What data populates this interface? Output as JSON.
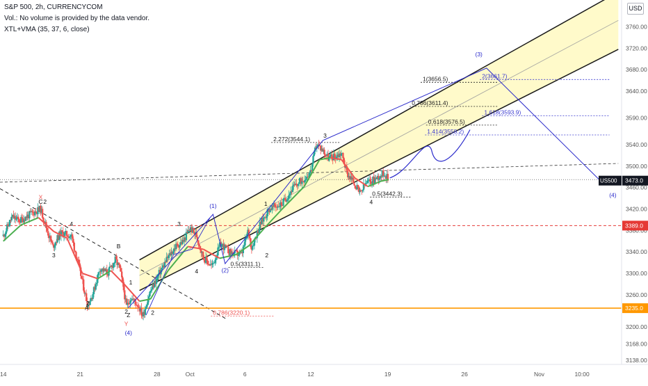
{
  "header": {
    "line1": "S&P 500, 2h, CURRENCYCOM",
    "line2": "Vol.: No volume is provided by the data vendor.",
    "line3": "XTL+VMA (35, 37, 6, close)",
    "currency_button": "USD"
  },
  "colors": {
    "bull": "#26a69a",
    "bear": "#ef5350",
    "vma_bull": "#4caf50",
    "vma_bear": "#ef5350",
    "channel_fill": "#fff9c4",
    "channel_line": "#1a1a1a",
    "wave_blue": "#2a2acb",
    "orange_line": "#ff9800",
    "red_line": "#e53935",
    "last_price_bg": "#131722"
  },
  "chart_data": {
    "type": "candlestick",
    "instrument": "S&P 500, 2h, CURRENCYCOM",
    "ylim": [
      3130,
      3810
    ],
    "y_ticks": [
      3138,
      3168,
      3200,
      3235,
      3260,
      3300,
      3340,
      3380,
      3420,
      3460,
      3500,
      3540,
      3590,
      3640,
      3680,
      3720,
      3760,
      3800
    ],
    "y_tick_labels": [
      "3138.00",
      "3168.00",
      "3200.00",
      "3235.0",
      "3260.00",
      "3300.00",
      "3340.00",
      "3380.00",
      "3420.00",
      "3460.00",
      "3500.00",
      "3540.00",
      "3590.00",
      "3640.00",
      "3680.00",
      "3720.00",
      "3760.00",
      "3800.0"
    ],
    "x_ticks": [
      {
        "label": "14",
        "t": 0
      },
      {
        "label": "21",
        "t": 7
      },
      {
        "label": "28",
        "t": 14
      },
      {
        "label": "Oct",
        "t": 17
      },
      {
        "label": "6",
        "t": 22
      },
      {
        "label": "12",
        "t": 28
      },
      {
        "label": "19",
        "t": 35
      },
      {
        "label": "26",
        "t": 42
      },
      {
        "label": "Nov",
        "t": 48.8
      },
      {
        "label": "10:00",
        "t": 52.7
      }
    ],
    "price_path_days_since_sep14": [
      [
        0,
        3370
      ],
      [
        0.8,
        3405
      ],
      [
        1.5,
        3398
      ],
      [
        2.6,
        3412
      ],
      [
        3.4,
        3420
      ],
      [
        4,
        3380
      ],
      [
        4.5,
        3350
      ],
      [
        5.2,
        3375
      ],
      [
        6.2,
        3370
      ],
      [
        6.8,
        3320
      ],
      [
        7.3,
        3275
      ],
      [
        7.7,
        3240
      ],
      [
        8.2,
        3265
      ],
      [
        8.8,
        3310
      ],
      [
        9.5,
        3300
      ],
      [
        10.2,
        3325
      ],
      [
        10.6,
        3310
      ],
      [
        11,
        3265
      ],
      [
        11.2,
        3237
      ],
      [
        11.6,
        3255
      ],
      [
        12.3,
        3240
      ],
      [
        12.7,
        3220
      ],
      [
        13.3,
        3262
      ],
      [
        14.2,
        3300
      ],
      [
        15,
        3330
      ],
      [
        15.7,
        3350
      ],
      [
        16.4,
        3360
      ],
      [
        17,
        3385
      ],
      [
        17.6,
        3370
      ],
      [
        18.2,
        3330
      ],
      [
        19,
        3313
      ],
      [
        19.8,
        3355
      ],
      [
        20.7,
        3338
      ],
      [
        21.7,
        3335
      ],
      [
        22.3,
        3380
      ],
      [
        22.6,
        3348
      ],
      [
        23.4,
        3392
      ],
      [
        24.2,
        3420
      ],
      [
        25.4,
        3430
      ],
      [
        26.4,
        3460
      ],
      [
        27.4,
        3477
      ],
      [
        28,
        3490
      ],
      [
        28.5,
        3541
      ],
      [
        29.1,
        3530
      ],
      [
        29.6,
        3515
      ],
      [
        30.4,
        3520
      ],
      [
        30.8,
        3525
      ],
      [
        31.3,
        3487
      ],
      [
        31.9,
        3470
      ],
      [
        32.5,
        3448
      ],
      [
        33,
        3468
      ],
      [
        33.5,
        3472
      ],
      [
        34,
        3478
      ],
      [
        34.7,
        3488
      ],
      [
        35.1,
        3473
      ]
    ],
    "vma_path": [
      [
        0,
        3360
      ],
      [
        1.6,
        3390
      ],
      [
        3.2,
        3404
      ],
      [
        4.6,
        3378
      ],
      [
        5.8,
        3366
      ],
      [
        7.2,
        3300
      ],
      [
        8.6,
        3290
      ],
      [
        9.8,
        3305
      ],
      [
        11,
        3280
      ],
      [
        12.4,
        3248
      ],
      [
        13.4,
        3252
      ],
      [
        15,
        3305
      ],
      [
        16.8,
        3350
      ],
      [
        18.2,
        3345
      ],
      [
        19.7,
        3328
      ],
      [
        21.2,
        3335
      ],
      [
        22.4,
        3352
      ],
      [
        23.8,
        3385
      ],
      [
        25.4,
        3420
      ],
      [
        27.4,
        3462
      ],
      [
        28.8,
        3512
      ],
      [
        29.8,
        3516
      ],
      [
        30.8,
        3512
      ],
      [
        32,
        3478
      ],
      [
        33.2,
        3462
      ],
      [
        34.4,
        3472
      ],
      [
        35.1,
        3475
      ]
    ],
    "wave_labels_black": [
      {
        "text": "X",
        "t": 3.4,
        "v": 3438,
        "color": "#ef5350"
      },
      {
        "text": "C",
        "t": 3.4,
        "v": 3430
      },
      {
        "text": "2",
        "t": 3.8,
        "v": 3430
      },
      {
        "text": "4",
        "t": 6.2,
        "v": 3388
      },
      {
        "text": "3",
        "t": 4.6,
        "v": 3330
      },
      {
        "text": "B",
        "t": 10.5,
        "v": 3347
      },
      {
        "text": "A",
        "t": 7.6,
        "v": 3232
      },
      {
        "text": "2",
        "t": 7.7,
        "v": 3240
      },
      {
        "text": "1",
        "t": 11.6,
        "v": 3279
      },
      {
        "text": "2",
        "t": 11.2,
        "v": 3225
      },
      {
        "text": "Z",
        "t": 11.4,
        "v": 3218
      },
      {
        "text": "Y",
        "t": 11.2,
        "v": 3202,
        "color": "#ef5350"
      },
      {
        "text": "2",
        "t": 13.6,
        "v": 3223
      },
      {
        "text": "3",
        "t": 16,
        "v": 3388
      },
      {
        "text": "4",
        "t": 17.6,
        "v": 3300
      },
      {
        "text": "1",
        "t": 23.9,
        "v": 3426
      },
      {
        "text": "2",
        "t": 24,
        "v": 3330
      },
      {
        "text": "3",
        "t": 29.3,
        "v": 3553
      },
      {
        "text": "4",
        "t": 33.5,
        "v": 3429
      }
    ],
    "wave_labels_blue": [
      {
        "text": "(1)",
        "t": 19.1,
        "v": 3422
      },
      {
        "text": "(2)",
        "t": 20.2,
        "v": 3302
      },
      {
        "text": "(4)",
        "t": 11.4,
        "v": 3185
      },
      {
        "text": "(3)",
        "t": 43.3,
        "v": 3705
      },
      {
        "text": "(4)",
        "t": 55.5,
        "v": 3442
      }
    ],
    "fib_levels": [
      {
        "text": "0.786(3220.1)",
        "x0": 18.9,
        "x1": 24.7,
        "v": 3220.1,
        "color": "#ef5350"
      },
      {
        "text": "0.5(3311.1)",
        "x0": 20.5,
        "x1": 23.7,
        "v": 3311.1
      },
      {
        "text": "0.5(3442.3)",
        "x0": 33.4,
        "x1": 37.2,
        "v": 3442.3
      },
      {
        "text": "2.272(3544.1)",
        "x0": 24.4,
        "x1": 30.6,
        "v": 3544.1
      },
      {
        "text": "1(3656.5)",
        "x0": 38,
        "x1": 45,
        "v": 3656.5
      },
      {
        "text": "0.786(3611.4)",
        "x0": 37,
        "x1": 45,
        "v": 3611.4
      },
      {
        "text": "0.618(3576.5)",
        "x0": 38.5,
        "x1": 45,
        "v": 3576.5
      },
      {
        "text": "2(3661.7)",
        "x0": 43.4,
        "x1": 55.2,
        "v": 3661.7,
        "color": "#3a3ad0"
      },
      {
        "text": "1.618(3593.9)",
        "x0": 43.6,
        "x1": 55.2,
        "v": 3593.9,
        "color": "#3a3ad0"
      },
      {
        "text": "1.414(3558.2)",
        "x0": 38.4,
        "x1": 55.2,
        "v": 3558.2,
        "color": "#3a3ad0"
      }
    ],
    "channel": {
      "lower": [
        [
          12.4,
          3268
        ],
        [
          56,
          3718
        ]
      ],
      "upper": [
        [
          12.4,
          3325
        ],
        [
          56,
          3825
        ]
      ],
      "mid": [
        [
          12.4,
          3296
        ],
        [
          56,
          3772
        ]
      ]
    },
    "horizontal_lines": [
      {
        "v": 3389.0,
        "label": "3389.0",
        "color": "#e53935",
        "dash": true
      },
      {
        "v": 3235.0,
        "label": "3235.0",
        "color": "#ff9800",
        "dash": false
      }
    ],
    "last_price": {
      "symbol": "US500",
      "value": "3473.0",
      "v": 3473.0
    }
  }
}
